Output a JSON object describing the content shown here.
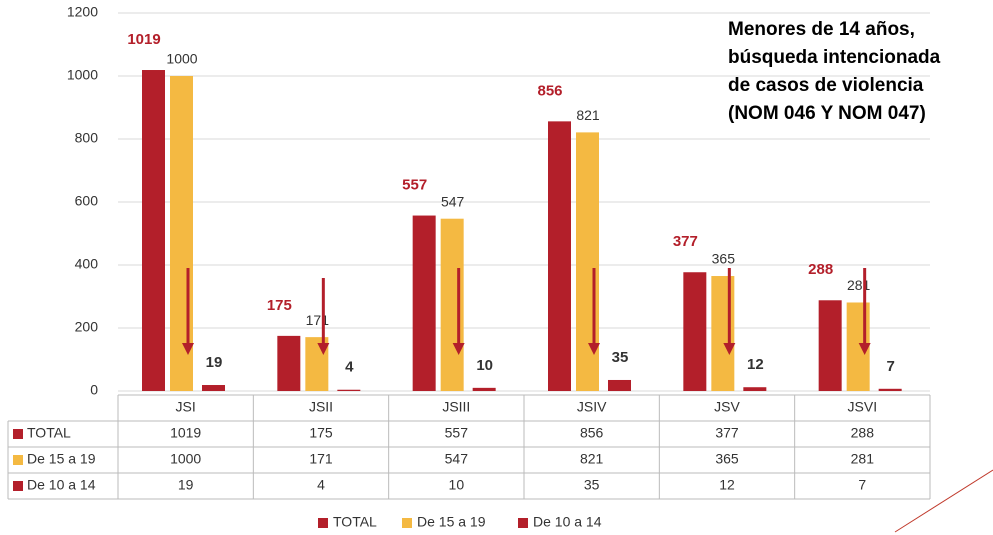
{
  "chart_data": {
    "type": "bar",
    "title": [
      "Menores de 14 años,",
      "búsqueda intencionada",
      "de casos de violencia",
      "(NOM 046 Y NOM 047)"
    ],
    "categories": [
      "JSI",
      "JSII",
      "JSIII",
      "JSIV",
      "JSV",
      "JSVI"
    ],
    "series": [
      {
        "name": "TOTAL",
        "color": "#b31f2a",
        "values": [
          1019,
          175,
          557,
          856,
          377,
          288
        ]
      },
      {
        "name": "De 15 a 19",
        "color": "#f4b942",
        "values": [
          1000,
          171,
          547,
          821,
          365,
          281
        ]
      },
      {
        "name": "De 10 a 14",
        "color": "#b31f2a",
        "values": [
          19,
          4,
          10,
          35,
          12,
          7
        ]
      }
    ],
    "ylim": [
      0,
      1200
    ],
    "yticks": [
      0,
      200,
      400,
      600,
      800,
      1000,
      1200
    ],
    "grid": true,
    "legend": "bottom"
  }
}
